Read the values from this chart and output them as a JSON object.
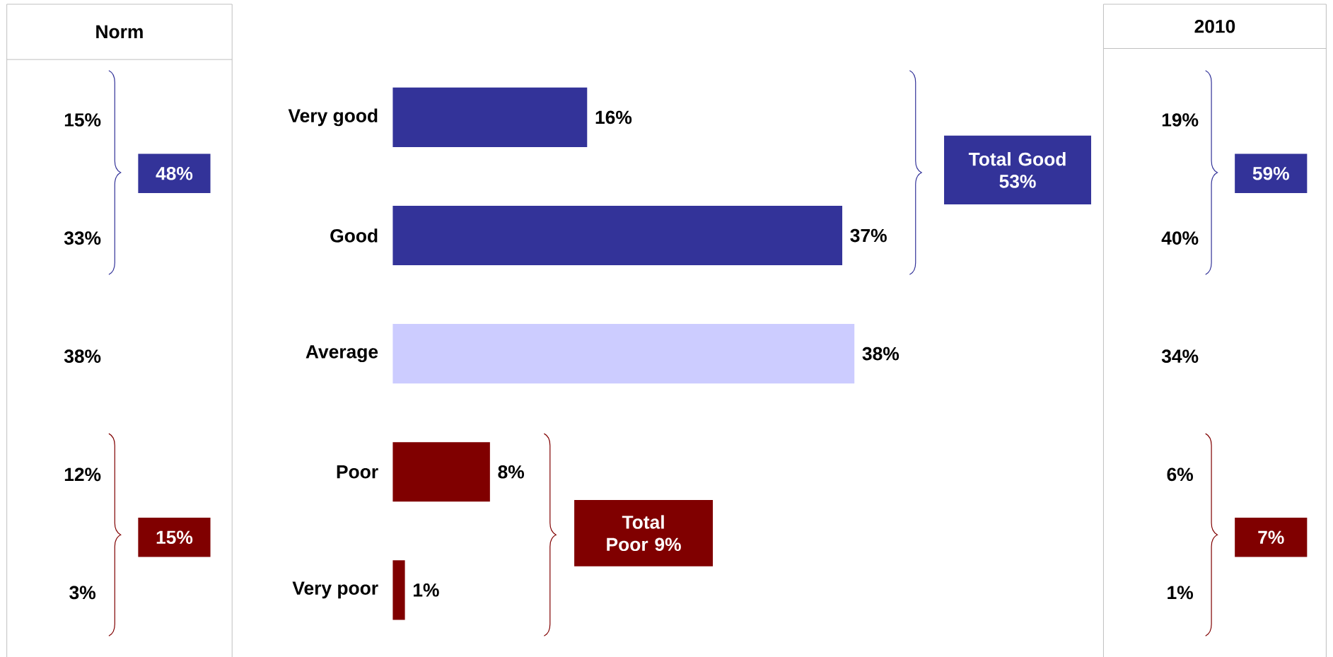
{
  "chart_data": [
    {
      "type": "other",
      "title": "Norm",
      "colors": [
        "#333399",
        "#800000"
      ],
      "annotations": [
        "15%",
        "33%",
        "38%",
        "12%",
        "3%",
        "48%",
        "15%"
      ]
    },
    {
      "type": "bar",
      "orientation": "horizontal",
      "categories": [
        "Very good",
        "Good",
        "Average",
        "Poor",
        "Very poor"
      ],
      "values": [
        16,
        37,
        38,
        8,
        1
      ],
      "value_labels": [
        "16%",
        "37%",
        "38%",
        "8%",
        "1%"
      ],
      "colors": [
        "#333399",
        "#333399",
        "#ccccff",
        "#800000",
        "#800000"
      ],
      "annotations": [
        "Total Good 53%",
        "Total Poor 9%"
      ]
    },
    {
      "type": "other",
      "title": "2010",
      "colors": [
        "#333399",
        "#800000"
      ],
      "annotations": [
        "19%",
        "40%",
        "34%",
        "6%",
        "1%",
        "59%",
        "7%"
      ]
    }
  ]
}
